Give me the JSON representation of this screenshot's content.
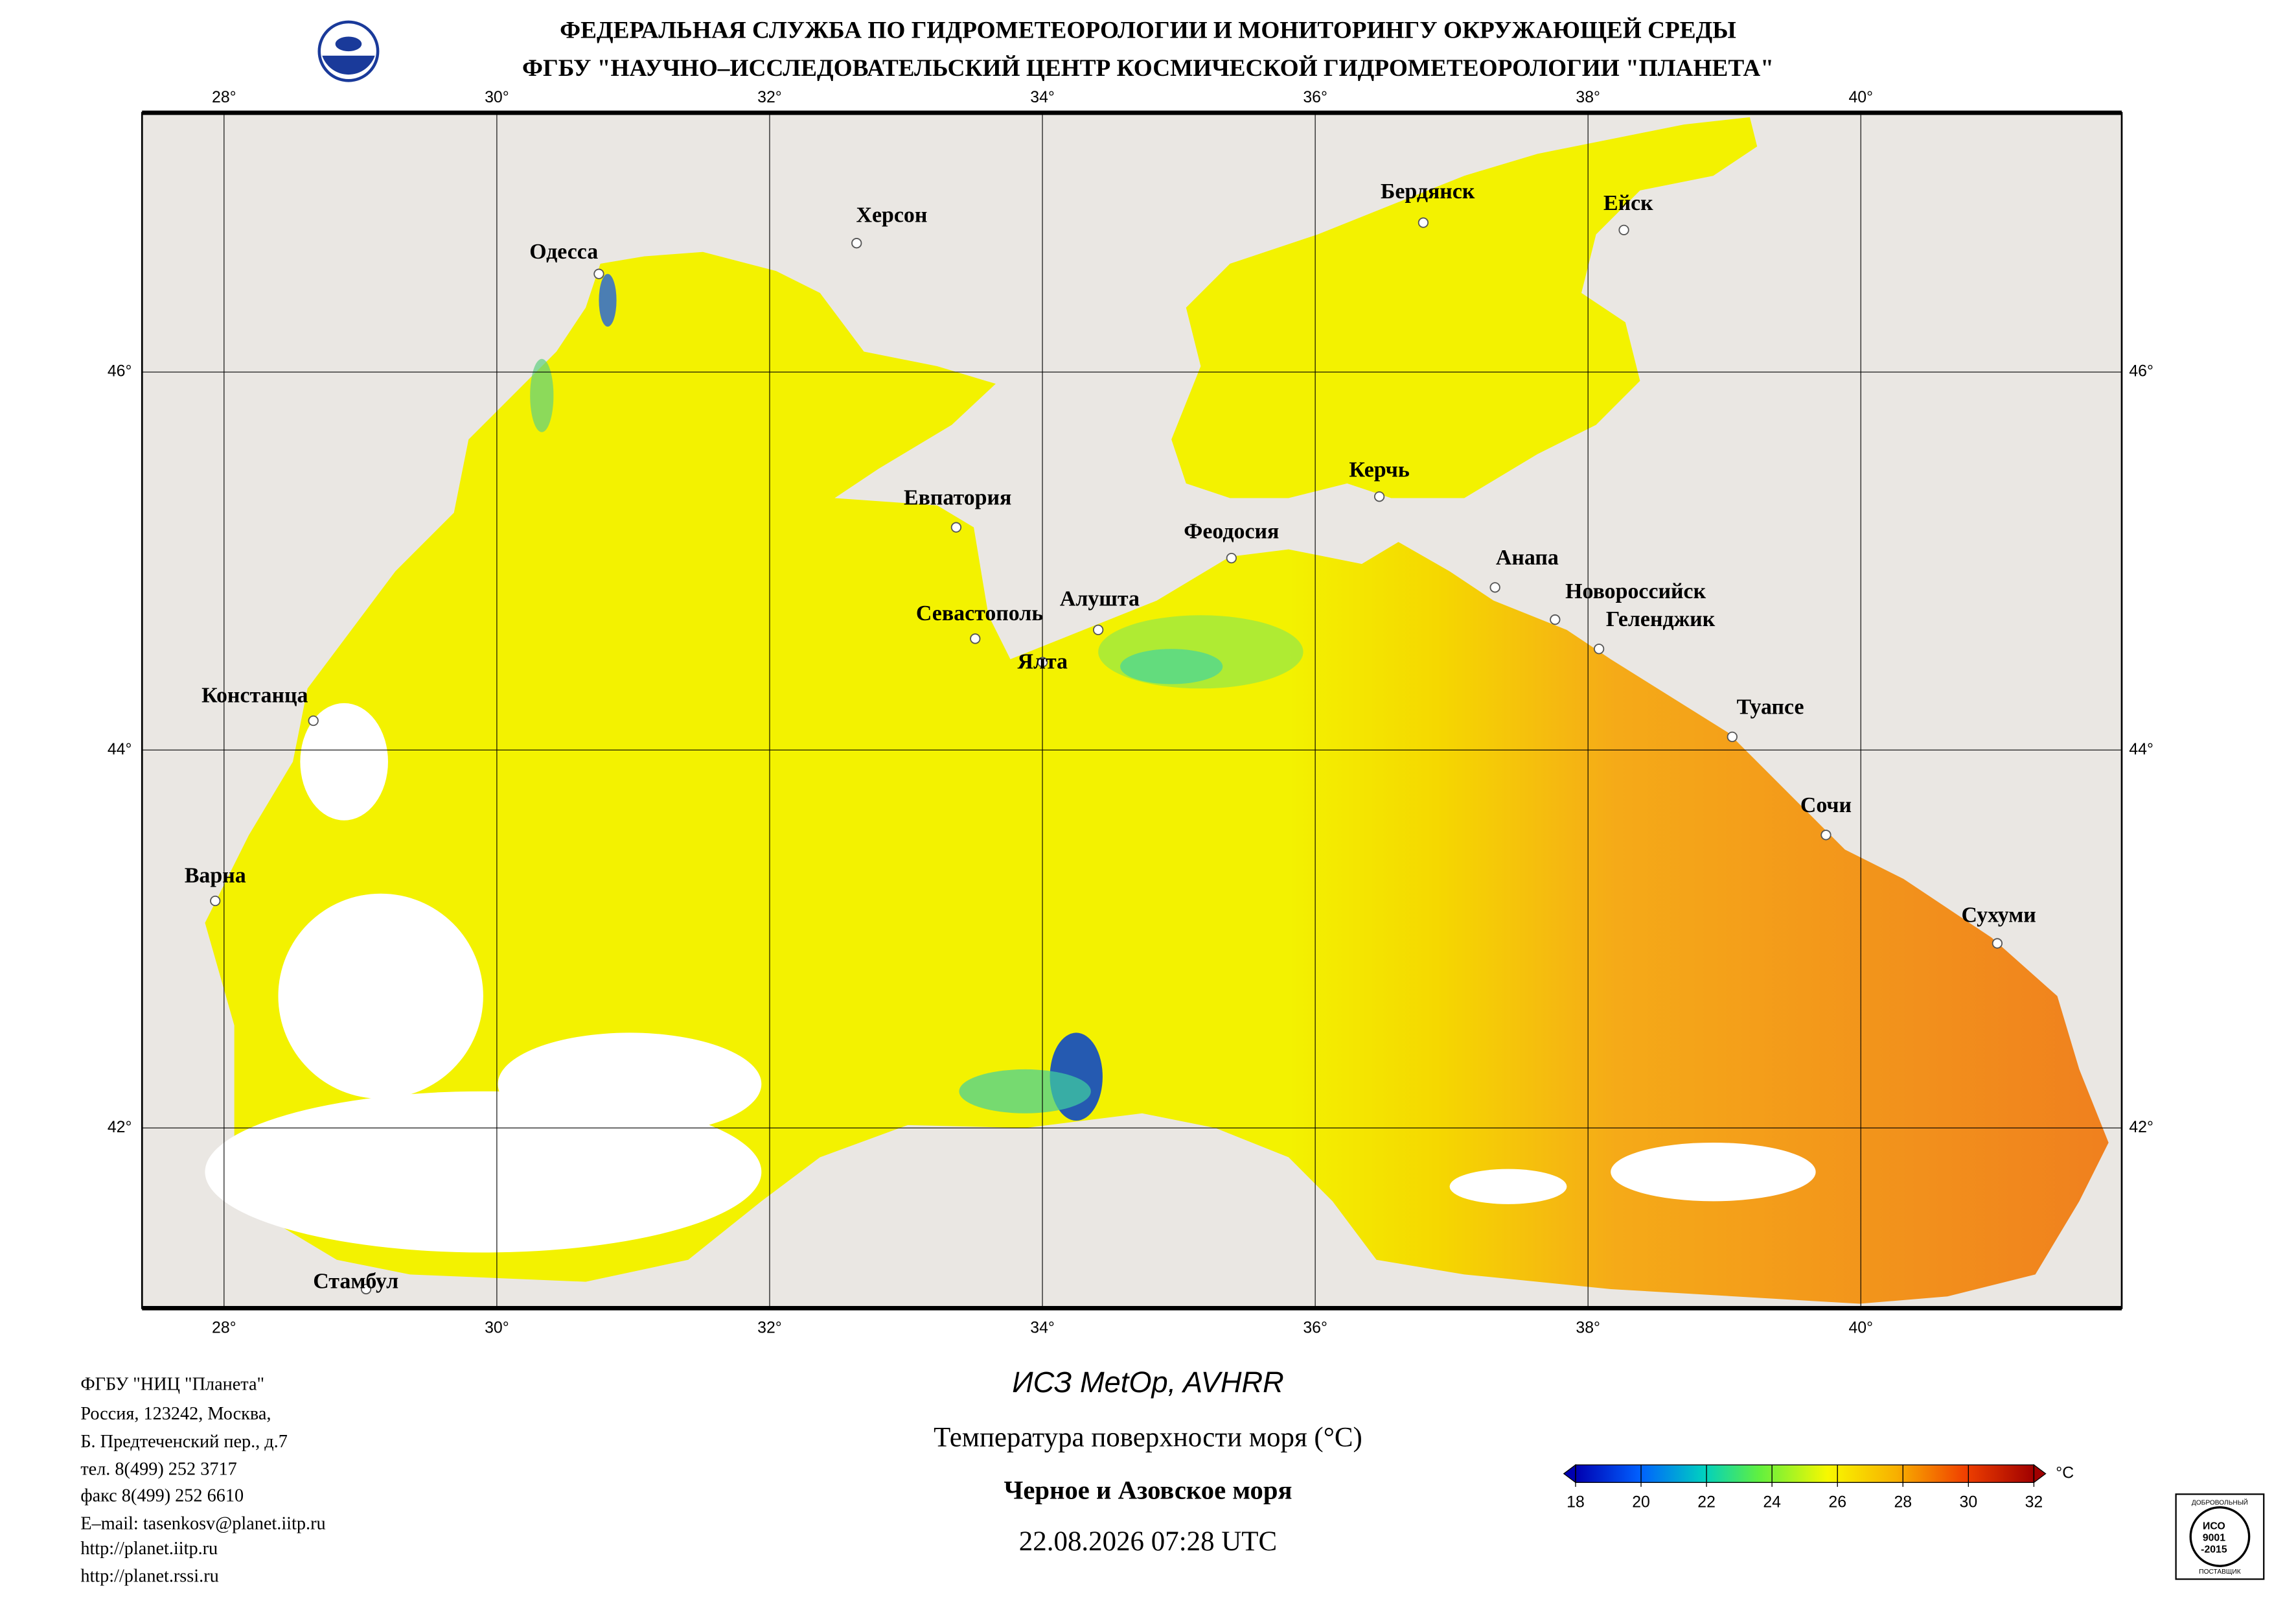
{
  "header": {
    "line1": "ФЕДЕРАЛЬНАЯ СЛУЖБА ПО ГИДРОМЕТЕОРОЛОГИИ И МОНИТОРИНГУ ОКРУЖАЮЩЕЙ СРЕДЫ",
    "line2": "ФГБУ \"НАУЧНО–ИССЛЕДОВАТЕЛЬСКИЙ ЦЕНТР КОСМИЧЕСКОЙ ГИДРОМЕТЕОРОЛОГИИ \"ПЛАНЕТА\""
  },
  "map": {
    "lon_ticks": [
      {
        "value": 28,
        "label": "28°"
      },
      {
        "value": 30,
        "label": "30°"
      },
      {
        "value": 32,
        "label": "32°"
      },
      {
        "value": 34,
        "label": "34°"
      },
      {
        "value": 36,
        "label": "36°"
      },
      {
        "value": 38,
        "label": "38°"
      },
      {
        "value": 40,
        "label": "40°"
      }
    ],
    "lat_ticks": [
      {
        "value": 46,
        "label": "46°"
      },
      {
        "value": 44,
        "label": "44°"
      },
      {
        "value": 42,
        "label": "42°"
      }
    ],
    "cities": [
      "Одесса",
      "Херсон",
      "Бердянск",
      "Ейск",
      "Евпатория",
      "Керчь",
      "Феодосия",
      "Анапа",
      "Новороссийск",
      "Геленджик",
      "Алушта",
      "Севастополь",
      "Ялта",
      "Констанца",
      "Туапсе",
      "Сочи",
      "Варна",
      "Сухуми",
      "Стамбул"
    ]
  },
  "footer": {
    "address": [
      "ФГБУ \"НИЦ \"Планета\"",
      "Россия, 123242, Москва,",
      "Б. Предтеченский пер., д.7",
      "тел. 8(499) 252 3717",
      "факс 8(499) 252 6610",
      "E–mail: tasenkosv@planet.iitp.ru",
      "http://planet.iitp.ru",
      "http://planet.rssi.ru"
    ],
    "satellite": "ИСЗ MetOp, AVHRR",
    "product": "Температура поверхности моря (°C)",
    "region": "Черное и Азовское моря",
    "datetime": "22.08.2026 07:28 UTC"
  },
  "colorbar": {
    "range": [
      18,
      32
    ],
    "ticks": [
      18,
      20,
      22,
      24,
      26,
      28,
      30,
      32
    ],
    "unit": "°C"
  },
  "certificate": {
    "top": "ДОБРОВОЛЬНЫЙ",
    "mark": [
      "ИСО",
      "9001",
      "-2015"
    ],
    "bottom": "ПОСТАВЩИК"
  }
}
